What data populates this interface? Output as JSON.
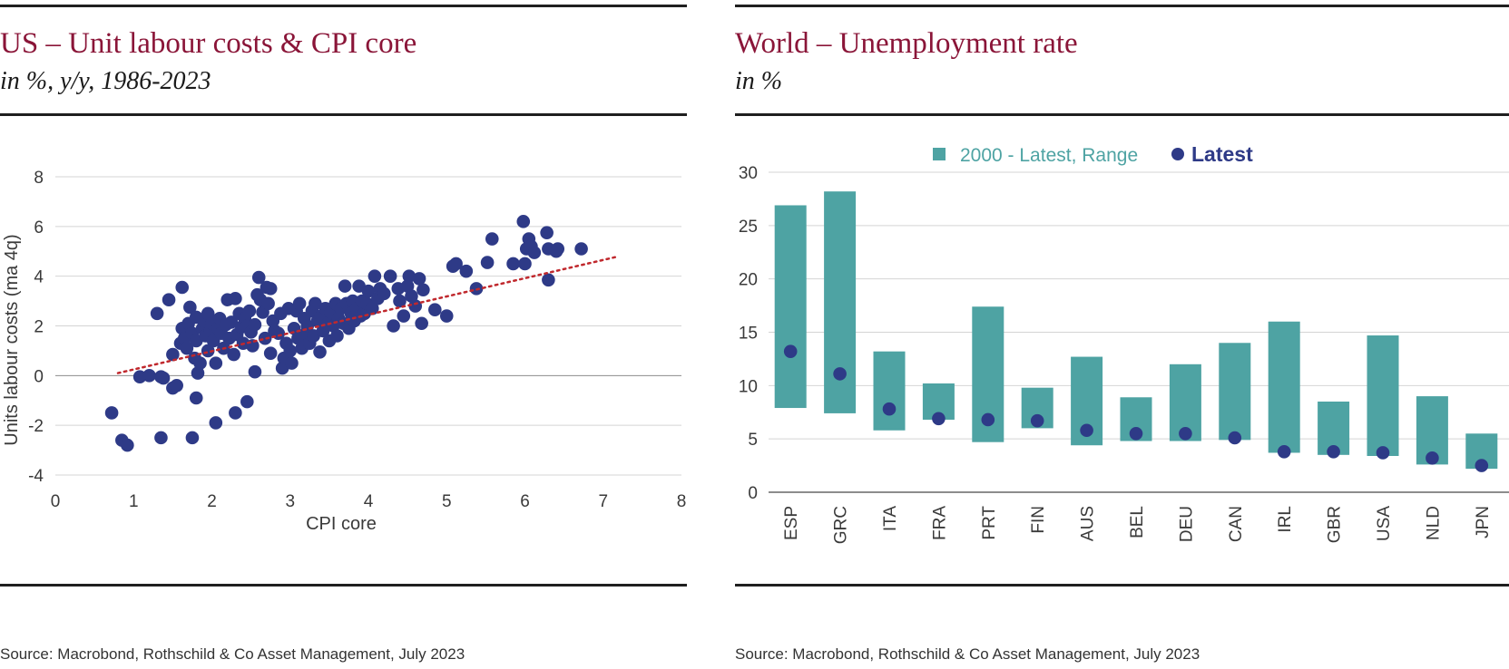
{
  "left": {
    "title": "US – Unit labour costs & CPI core",
    "subtitle": "in %, y/y, 1986-2023",
    "source": "Source: Macrobond, Rothschild & Co Asset Management, July 2023"
  },
  "right": {
    "title": "World – Unemployment rate",
    "subtitle": "in %",
    "source": "Source: Macrobond, Rothschild & Co Asset Management, July 2023"
  },
  "colors": {
    "title": "#8a1538",
    "dots": "#2e3a87",
    "bars": "#4ea3a3",
    "trend": "#c0282d",
    "grid": "#d4d4d4"
  },
  "chart_data": [
    {
      "type": "scatter",
      "xlabel": "CPI core",
      "ylabel": "Units labour costs (ma 4q)",
      "xlim": [
        0,
        8
      ],
      "ylim": [
        -4,
        8
      ],
      "xticks": [
        "0",
        "1",
        "2",
        "3",
        "4",
        "5",
        "6",
        "7",
        "8"
      ],
      "yticks": [
        "-4",
        "-2",
        "0",
        "2",
        "4",
        "6",
        "8"
      ],
      "grid": true,
      "trendline": {
        "x": [
          0.8,
          7.2
        ],
        "y": [
          0.1,
          4.8
        ],
        "style": "dotted"
      },
      "points": [
        [
          0.72,
          -1.5
        ],
        [
          0.85,
          -2.6
        ],
        [
          0.92,
          -2.8
        ],
        [
          1.08,
          -0.05
        ],
        [
          1.2,
          0.0
        ],
        [
          1.35,
          -0.05
        ],
        [
          1.38,
          -0.1
        ],
        [
          1.5,
          -0.5
        ],
        [
          1.55,
          -0.4
        ],
        [
          1.35,
          -2.5
        ],
        [
          1.75,
          -2.5
        ],
        [
          1.8,
          -0.9
        ],
        [
          2.05,
          -1.9
        ],
        [
          2.3,
          -1.5
        ],
        [
          2.45,
          -1.05
        ],
        [
          1.3,
          2.5
        ],
        [
          1.45,
          3.05
        ],
        [
          1.62,
          3.55
        ],
        [
          1.5,
          0.85
        ],
        [
          1.6,
          1.3
        ],
        [
          1.62,
          1.9
        ],
        [
          1.65,
          1.5
        ],
        [
          1.68,
          1.1
        ],
        [
          1.7,
          2.1
        ],
        [
          1.72,
          2.75
        ],
        [
          1.75,
          1.7
        ],
        [
          1.78,
          0.7
        ],
        [
          1.8,
          2.35
        ],
        [
          1.8,
          1.4
        ],
        [
          1.82,
          0.1
        ],
        [
          1.85,
          0.5
        ],
        [
          1.88,
          1.9
        ],
        [
          1.9,
          2.2
        ],
        [
          1.92,
          1.6
        ],
        [
          1.95,
          1.0
        ],
        [
          1.95,
          2.5
        ],
        [
          1.98,
          1.8
        ],
        [
          2.0,
          2.1
        ],
        [
          2.02,
          1.4
        ],
        [
          2.05,
          0.5
        ],
        [
          2.08,
          1.9
        ],
        [
          2.1,
          2.3
        ],
        [
          2.12,
          1.7
        ],
        [
          2.15,
          1.1
        ],
        [
          2.18,
          2.05
        ],
        [
          2.2,
          3.05
        ],
        [
          2.22,
          1.5
        ],
        [
          2.25,
          2.15
        ],
        [
          2.28,
          0.85
        ],
        [
          2.3,
          3.1
        ],
        [
          2.32,
          1.65
        ],
        [
          2.35,
          2.5
        ],
        [
          2.38,
          1.95
        ],
        [
          2.4,
          1.3
        ],
        [
          2.42,
          2.3
        ],
        [
          2.45,
          2.0
        ],
        [
          2.48,
          2.6
        ],
        [
          2.5,
          1.75
        ],
        [
          2.52,
          1.2
        ],
        [
          2.55,
          2.05
        ],
        [
          2.58,
          3.25
        ],
        [
          2.6,
          3.95
        ],
        [
          2.62,
          3.05
        ],
        [
          2.65,
          2.55
        ],
        [
          2.68,
          1.5
        ],
        [
          2.7,
          3.55
        ],
        [
          2.72,
          2.9
        ],
        [
          2.75,
          3.5
        ],
        [
          2.78,
          2.2
        ],
        [
          2.8,
          1.8
        ],
        [
          2.55,
          0.15
        ],
        [
          2.75,
          0.9
        ],
        [
          2.85,
          1.7
        ],
        [
          2.88,
          2.5
        ],
        [
          2.9,
          0.3
        ],
        [
          2.92,
          0.7
        ],
        [
          2.95,
          1.3
        ],
        [
          2.98,
          2.7
        ],
        [
          3.0,
          1.0
        ],
        [
          3.02,
          0.5
        ],
        [
          3.05,
          1.9
        ],
        [
          3.08,
          2.6
        ],
        [
          3.1,
          1.5
        ],
        [
          3.12,
          2.9
        ],
        [
          3.15,
          1.1
        ],
        [
          3.18,
          2.3
        ],
        [
          3.2,
          1.7
        ],
        [
          3.22,
          2.0
        ],
        [
          3.25,
          1.3
        ],
        [
          3.28,
          2.6
        ],
        [
          3.3,
          1.6
        ],
        [
          3.32,
          2.9
        ],
        [
          3.35,
          2.2
        ],
        [
          3.38,
          0.95
        ],
        [
          3.4,
          2.4
        ],
        [
          3.42,
          1.8
        ],
        [
          3.45,
          2.7
        ],
        [
          3.48,
          2.1
        ],
        [
          3.5,
          1.4
        ],
        [
          3.52,
          2.55
        ],
        [
          3.55,
          2.0
        ],
        [
          3.58,
          2.9
        ],
        [
          3.6,
          1.6
        ],
        [
          3.62,
          2.3
        ],
        [
          3.65,
          2.7
        ],
        [
          3.68,
          2.1
        ],
        [
          3.7,
          3.6
        ],
        [
          3.72,
          2.9
        ],
        [
          3.75,
          1.9
        ],
        [
          3.78,
          2.5
        ],
        [
          3.8,
          3.0
        ],
        [
          3.82,
          2.2
        ],
        [
          3.85,
          2.7
        ],
        [
          3.88,
          3.6
        ],
        [
          3.9,
          2.4
        ],
        [
          3.92,
          3.0
        ],
        [
          3.95,
          2.5
        ],
        [
          3.98,
          2.9
        ],
        [
          4.0,
          3.4
        ],
        [
          4.05,
          2.7
        ],
        [
          4.08,
          4.0
        ],
        [
          4.12,
          3.1
        ],
        [
          4.15,
          3.5
        ],
        [
          4.2,
          3.3
        ],
        [
          4.28,
          4.0
        ],
        [
          4.32,
          2.0
        ],
        [
          4.38,
          3.5
        ],
        [
          4.4,
          3.0
        ],
        [
          4.45,
          2.4
        ],
        [
          4.5,
          3.6
        ],
        [
          4.52,
          4.0
        ],
        [
          4.55,
          3.2
        ],
        [
          4.6,
          2.8
        ],
        [
          4.65,
          3.9
        ],
        [
          4.68,
          2.1
        ],
        [
          4.7,
          3.45
        ],
        [
          4.85,
          2.65
        ],
        [
          5.0,
          2.4
        ],
        [
          5.08,
          4.4
        ],
        [
          5.12,
          4.5
        ],
        [
          5.25,
          4.2
        ],
        [
          5.38,
          3.5
        ],
        [
          5.52,
          4.55
        ],
        [
          5.58,
          5.5
        ],
        [
          5.85,
          4.5
        ],
        [
          5.98,
          6.2
        ],
        [
          6.0,
          4.5
        ],
        [
          6.02,
          5.1
        ],
        [
          6.05,
          5.5
        ],
        [
          6.08,
          5.2
        ],
        [
          6.12,
          4.95
        ],
        [
          6.28,
          5.75
        ],
        [
          6.3,
          5.1
        ],
        [
          6.3,
          3.85
        ],
        [
          6.4,
          5.0
        ],
        [
          6.42,
          5.1
        ],
        [
          6.72,
          5.1
        ]
      ]
    },
    {
      "type": "bar",
      "legend": {
        "range": "2000 - Latest, Range",
        "latest": "Latest",
        "position": "top"
      },
      "ylim": [
        0,
        30
      ],
      "yticks": [
        "0",
        "5",
        "10",
        "15",
        "20",
        "25",
        "30"
      ],
      "grid": true,
      "categories": [
        "ESP",
        "GRC",
        "ITA",
        "FRA",
        "PRT",
        "FIN",
        "AUS",
        "BEL",
        "DEU",
        "CAN",
        "IRL",
        "GBR",
        "USA",
        "NLD",
        "JPN"
      ],
      "range_low": [
        7.9,
        7.4,
        5.8,
        6.8,
        4.7,
        6.0,
        4.4,
        4.8,
        4.8,
        4.9,
        3.7,
        3.5,
        3.4,
        2.6,
        2.2
      ],
      "range_high": [
        26.9,
        28.2,
        13.2,
        10.2,
        17.4,
        9.8,
        12.7,
        8.9,
        12.0,
        14.0,
        16.0,
        8.5,
        14.7,
        9.0,
        5.5
      ],
      "latest": [
        13.2,
        11.1,
        7.8,
        6.9,
        6.8,
        6.7,
        5.8,
        5.5,
        5.5,
        5.1,
        3.8,
        3.8,
        3.7,
        3.2,
        2.5
      ]
    }
  ]
}
